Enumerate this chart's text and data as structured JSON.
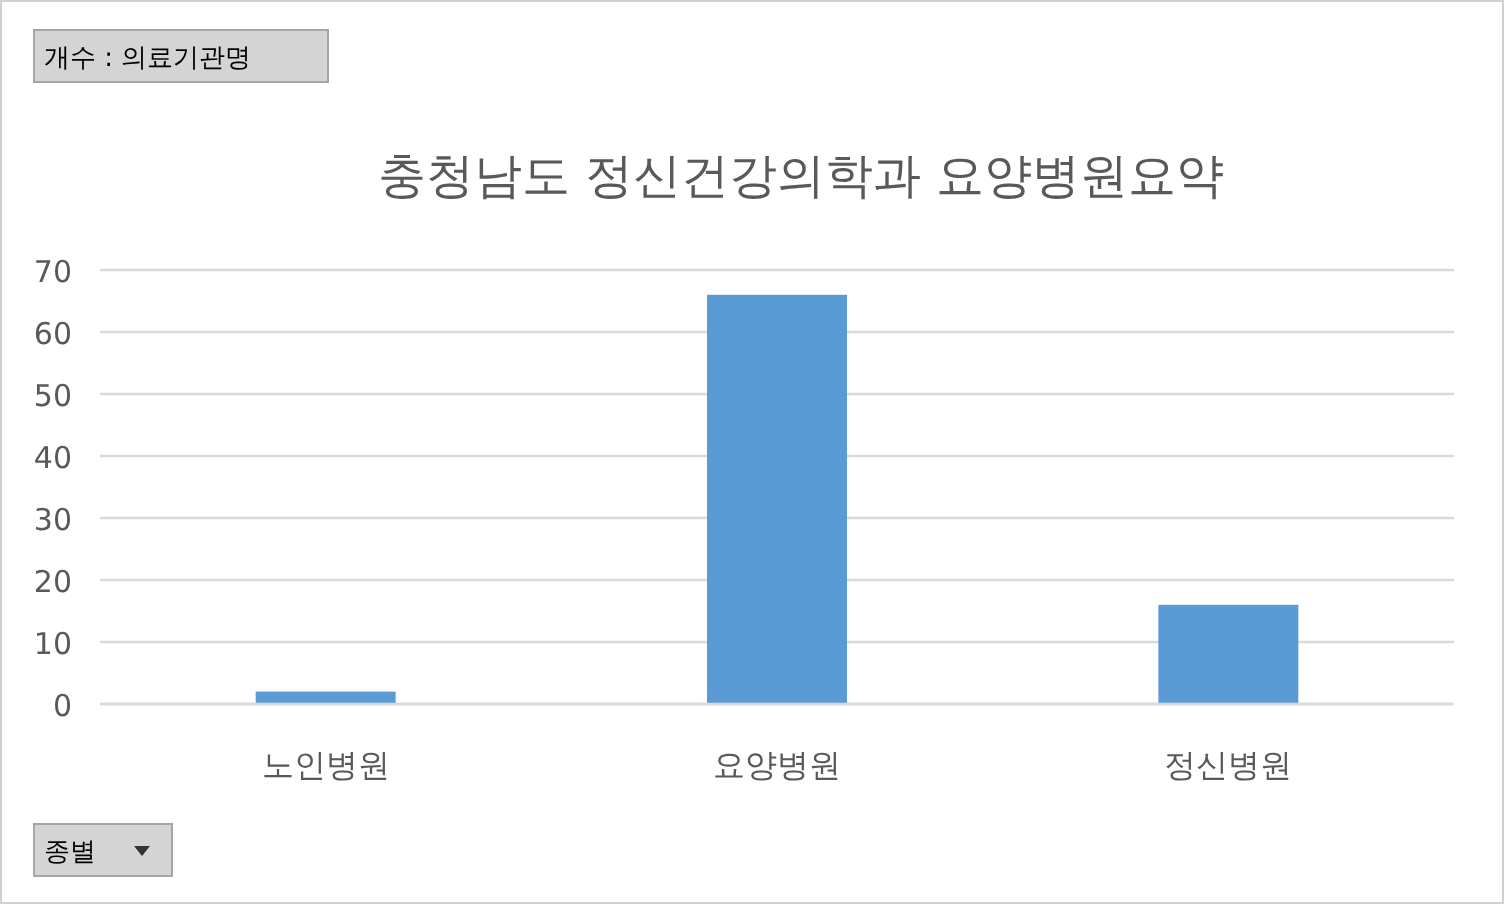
{
  "chart_data": {
    "type": "bar",
    "title": "충청남도 정신건강의학과 요양병원요약",
    "categories": [
      "노인병원",
      "요양병원",
      "정신병원"
    ],
    "values": [
      2,
      66,
      16
    ],
    "color": "#5b9bd5",
    "ylim": [
      0,
      70
    ],
    "yticks": [
      0,
      10,
      20,
      30,
      40,
      50,
      60,
      70
    ],
    "grid": "y",
    "annotations": [
      "개수 : 의료기관명",
      "종별"
    ]
  }
}
